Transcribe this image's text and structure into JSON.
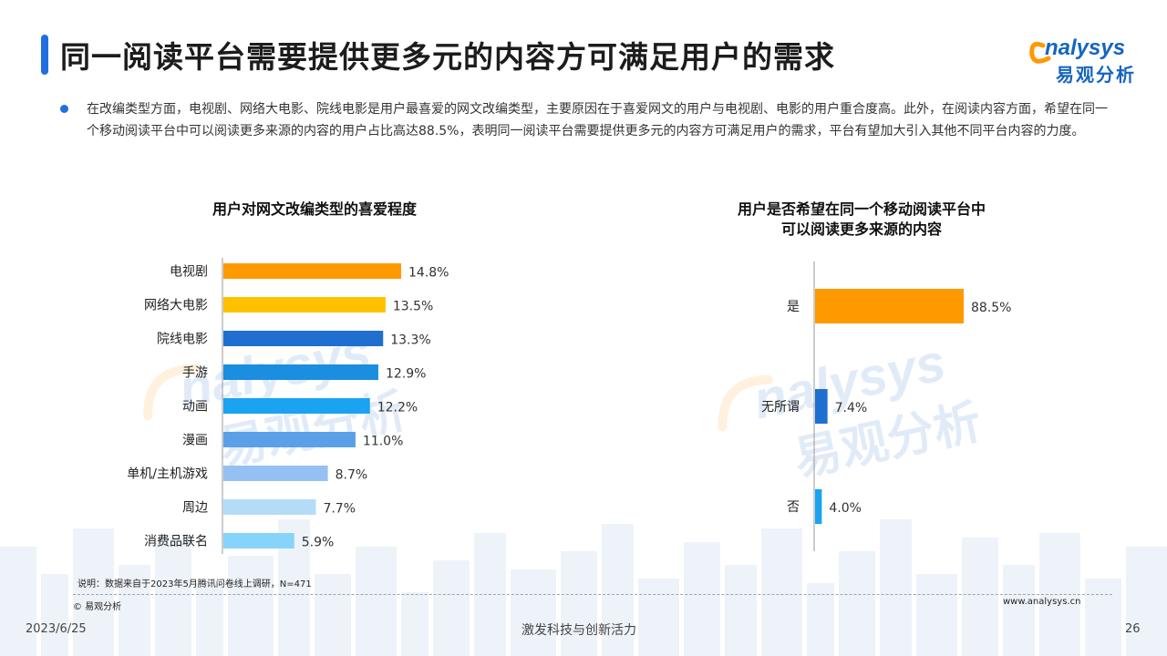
{
  "header": {
    "title": "同一阅读平台需要提供更多元的内容方可满足用户的需求",
    "logo_text": "nalysys",
    "logo_sub": "易观分析"
  },
  "intro": {
    "text": "在改编类型方面，电视剧、网络大电影、院线电影是用户最喜爱的网文改编类型，主要原因在于喜爱网文的用户与电视剧、电影的用户重合度高。此外，在阅读内容方面，希望在同一个移动阅读平台中可以阅读更多来源的内容的用户占比高达88.5%，表明同一阅读平台需要提供更多元的内容方可满足用户的需求，平台有望加大引入其他不同平台内容的力度。"
  },
  "chart_data": [
    {
      "type": "bar",
      "orientation": "horizontal",
      "title": "用户对网文改编类型的喜爱程度",
      "categories": [
        "电视剧",
        "网络大电影",
        "院线电影",
        "手游",
        "动画",
        "漫画",
        "单机/主机游戏",
        "周边",
        "消费品联名"
      ],
      "values": [
        14.8,
        13.5,
        13.3,
        12.9,
        12.2,
        11.0,
        8.7,
        7.7,
        5.9
      ],
      "value_labels": [
        "14.8%",
        "13.5%",
        "13.3%",
        "12.9%",
        "12.2%",
        "11.0%",
        "8.7%",
        "7.7%",
        "5.9%"
      ],
      "colors": [
        "#ff9900",
        "#ffc000",
        "#1e6fd0",
        "#1b8ee0",
        "#1aa3f0",
        "#5aa0e8",
        "#95c1f2",
        "#b5dcf7",
        "#87d4fa"
      ],
      "xlim": [
        0,
        14.8
      ],
      "grid": false,
      "legend": "none"
    },
    {
      "type": "bar",
      "orientation": "horizontal",
      "title": "用户是否希望在同一个移动阅读平台中可以阅读更多来源的内容",
      "title_lines": [
        "用户是否希望在同一个移动阅读平台中",
        "可以阅读更多来源的内容"
      ],
      "categories": [
        "是",
        "无所谓",
        "否"
      ],
      "values": [
        88.5,
        7.4,
        4.0
      ],
      "value_labels": [
        "88.5%",
        "7.4%",
        "4.0%"
      ],
      "colors": [
        "#ff9900",
        "#1e6fd0",
        "#1aa3f0"
      ],
      "xlim": [
        0,
        88.5
      ],
      "grid": false,
      "legend": "none"
    }
  ],
  "footer": {
    "note": "说明：数据来自于2023年5月腾讯问卷线上调研，N=471",
    "copyright": "© 易观分析",
    "website": "www.analysys.cn",
    "date": "2023/6/25",
    "slogan": "激发科技与创新活力",
    "page": "26"
  },
  "watermark": {
    "text_en": "nalysys",
    "text_cn": "易观分析"
  },
  "colors": {
    "accent": "#1f6fe0",
    "orange": "#ff9900",
    "logo_blue": "#1565c0"
  }
}
